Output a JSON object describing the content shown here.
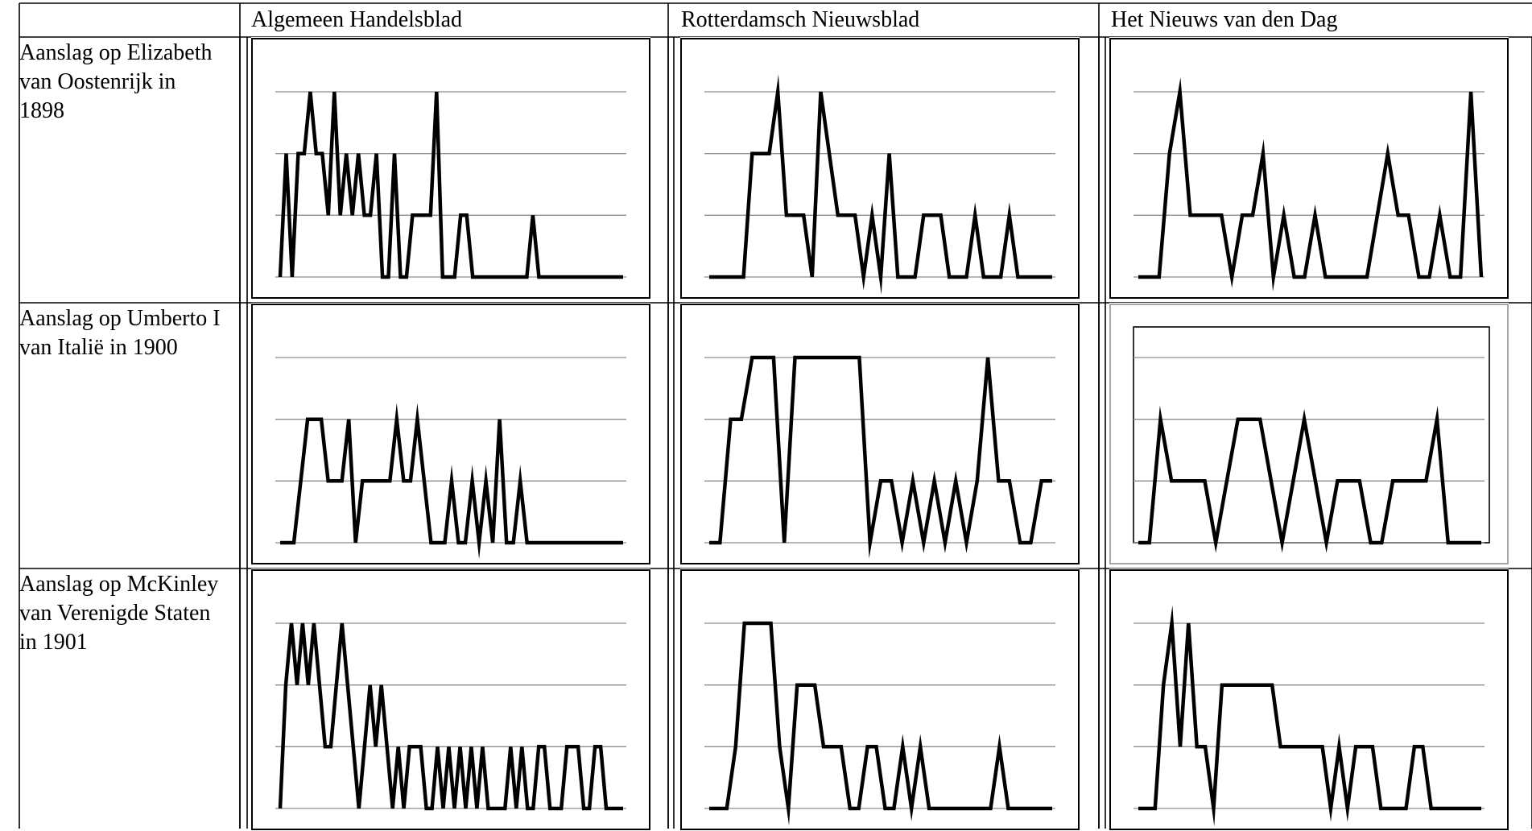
{
  "columns": [
    "Algemeen Handelsblad",
    "Rotterdamsch Nieuwsblad",
    "Het Nieuws van den Dag"
  ],
  "rows": [
    "Aanslag op Elizabeth van Oostenrijk in 1898",
    "Aanslag op Umberto I van Italië in 1900",
    "Aanslag op McKinley van Verenigde Staten in 1901"
  ],
  "colors": {
    "line": "#000000",
    "gridline": "#8c8c8c",
    "frame": "#000000",
    "frame_light": "#a6a6a6"
  },
  "chart_data": [
    {
      "type": "line",
      "row": 0,
      "col": 0,
      "ylim": [
        0,
        3
      ],
      "grid": true,
      "values": [
        0,
        2,
        0,
        2,
        2,
        3,
        2,
        2,
        1,
        3,
        1,
        2,
        1,
        2,
        1,
        1,
        2,
        0,
        0,
        2,
        0,
        0,
        1,
        1,
        1,
        1,
        3,
        0,
        0,
        0,
        1,
        1,
        0,
        0,
        0,
        0,
        0,
        0,
        0,
        0,
        0,
        0,
        1,
        0,
        0,
        0,
        0,
        0,
        0,
        0,
        0,
        0,
        0,
        0,
        0,
        0,
        0,
        0
      ]
    },
    {
      "type": "line",
      "row": 0,
      "col": 1,
      "ylim": [
        0,
        3
      ],
      "grid": true,
      "values": [
        0,
        0,
        0,
        0,
        0,
        2,
        2,
        2,
        3,
        1,
        1,
        1,
        0,
        3,
        2,
        1,
        1,
        1,
        0,
        1,
        0,
        2,
        0,
        0,
        0,
        1,
        1,
        1,
        0,
        0,
        0,
        1,
        0,
        0,
        0,
        1,
        0,
        0,
        0,
        0,
        0
      ]
    },
    {
      "type": "line",
      "row": 0,
      "col": 2,
      "ylim": [
        0,
        3
      ],
      "grid": true,
      "values": [
        0,
        0,
        0,
        2,
        3,
        1,
        1,
        1,
        1,
        0,
        1,
        1,
        2,
        0,
        1,
        0,
        0,
        1,
        0,
        0,
        0,
        0,
        0,
        1,
        2,
        1,
        1,
        0,
        0,
        1,
        0,
        0,
        3,
        0
      ]
    },
    {
      "type": "line",
      "row": 1,
      "col": 0,
      "ylim": [
        0,
        3
      ],
      "grid": true,
      "values": [
        0,
        0,
        0,
        1,
        2,
        2,
        2,
        1,
        1,
        1,
        2,
        0,
        1,
        1,
        1,
        1,
        1,
        2,
        1,
        1,
        2,
        1,
        0,
        0,
        0,
        1,
        0,
        0,
        1,
        0,
        1,
        0,
        2,
        0,
        0,
        1,
        0,
        0,
        0,
        0,
        0,
        0,
        0,
        0,
        0,
        0,
        0,
        0,
        0,
        0,
        0
      ]
    },
    {
      "type": "line",
      "row": 1,
      "col": 1,
      "ylim": [
        0,
        3
      ],
      "grid": true,
      "values": [
        0,
        0,
        2,
        2,
        3,
        3,
        3,
        0,
        3,
        3,
        3,
        3,
        3,
        3,
        3,
        0,
        1,
        1,
        0,
        1,
        0,
        1,
        0,
        1,
        0,
        1,
        3,
        1,
        1,
        0,
        0,
        1,
        1
      ]
    },
    {
      "type": "line",
      "row": 1,
      "col": 2,
      "ylim": [
        0,
        3
      ],
      "grid": true,
      "plot_frame": true,
      "values": [
        0,
        0,
        2,
        1,
        1,
        1,
        1,
        0,
        1,
        2,
        2,
        2,
        1,
        0,
        1,
        2,
        1,
        0,
        1,
        1,
        1,
        0,
        0,
        1,
        1,
        1,
        1,
        2,
        0,
        0,
        0,
        0
      ]
    },
    {
      "type": "line",
      "row": 2,
      "col": 0,
      "ylim": [
        0,
        3
      ],
      "grid": true,
      "values": [
        0,
        2,
        3,
        2,
        3,
        2,
        3,
        2,
        1,
        1,
        2,
        3,
        2,
        1,
        0,
        1,
        2,
        1,
        2,
        1,
        0,
        1,
        0,
        1,
        1,
        1,
        0,
        0,
        1,
        0,
        1,
        0,
        1,
        0,
        1,
        0,
        1,
        0,
        0,
        0,
        0,
        1,
        0,
        1,
        0,
        0,
        1,
        1,
        0,
        0,
        0,
        1,
        1,
        1,
        0,
        0,
        1,
        1,
        0,
        0,
        0,
        0
      ]
    },
    {
      "type": "line",
      "row": 2,
      "col": 1,
      "ylim": [
        0,
        3
      ],
      "grid": true,
      "values": [
        0,
        0,
        0,
        1,
        3,
        3,
        3,
        3,
        1,
        0,
        2,
        2,
        2,
        1,
        1,
        1,
        0,
        0,
        1,
        1,
        0,
        0,
        1,
        0,
        1,
        0,
        0,
        0,
        0,
        0,
        0,
        0,
        0,
        1,
        0,
        0,
        0,
        0,
        0,
        0
      ]
    },
    {
      "type": "line",
      "row": 2,
      "col": 2,
      "ylim": [
        0,
        3
      ],
      "grid": true,
      "values": [
        0,
        0,
        0,
        2,
        3,
        1,
        3,
        1,
        1,
        0,
        2,
        2,
        2,
        2,
        2,
        2,
        2,
        1,
        1,
        1,
        1,
        1,
        1,
        0,
        1,
        0,
        1,
        1,
        1,
        0,
        0,
        0,
        0,
        1,
        1,
        0,
        0,
        0,
        0,
        0,
        0,
        0
      ]
    }
  ]
}
